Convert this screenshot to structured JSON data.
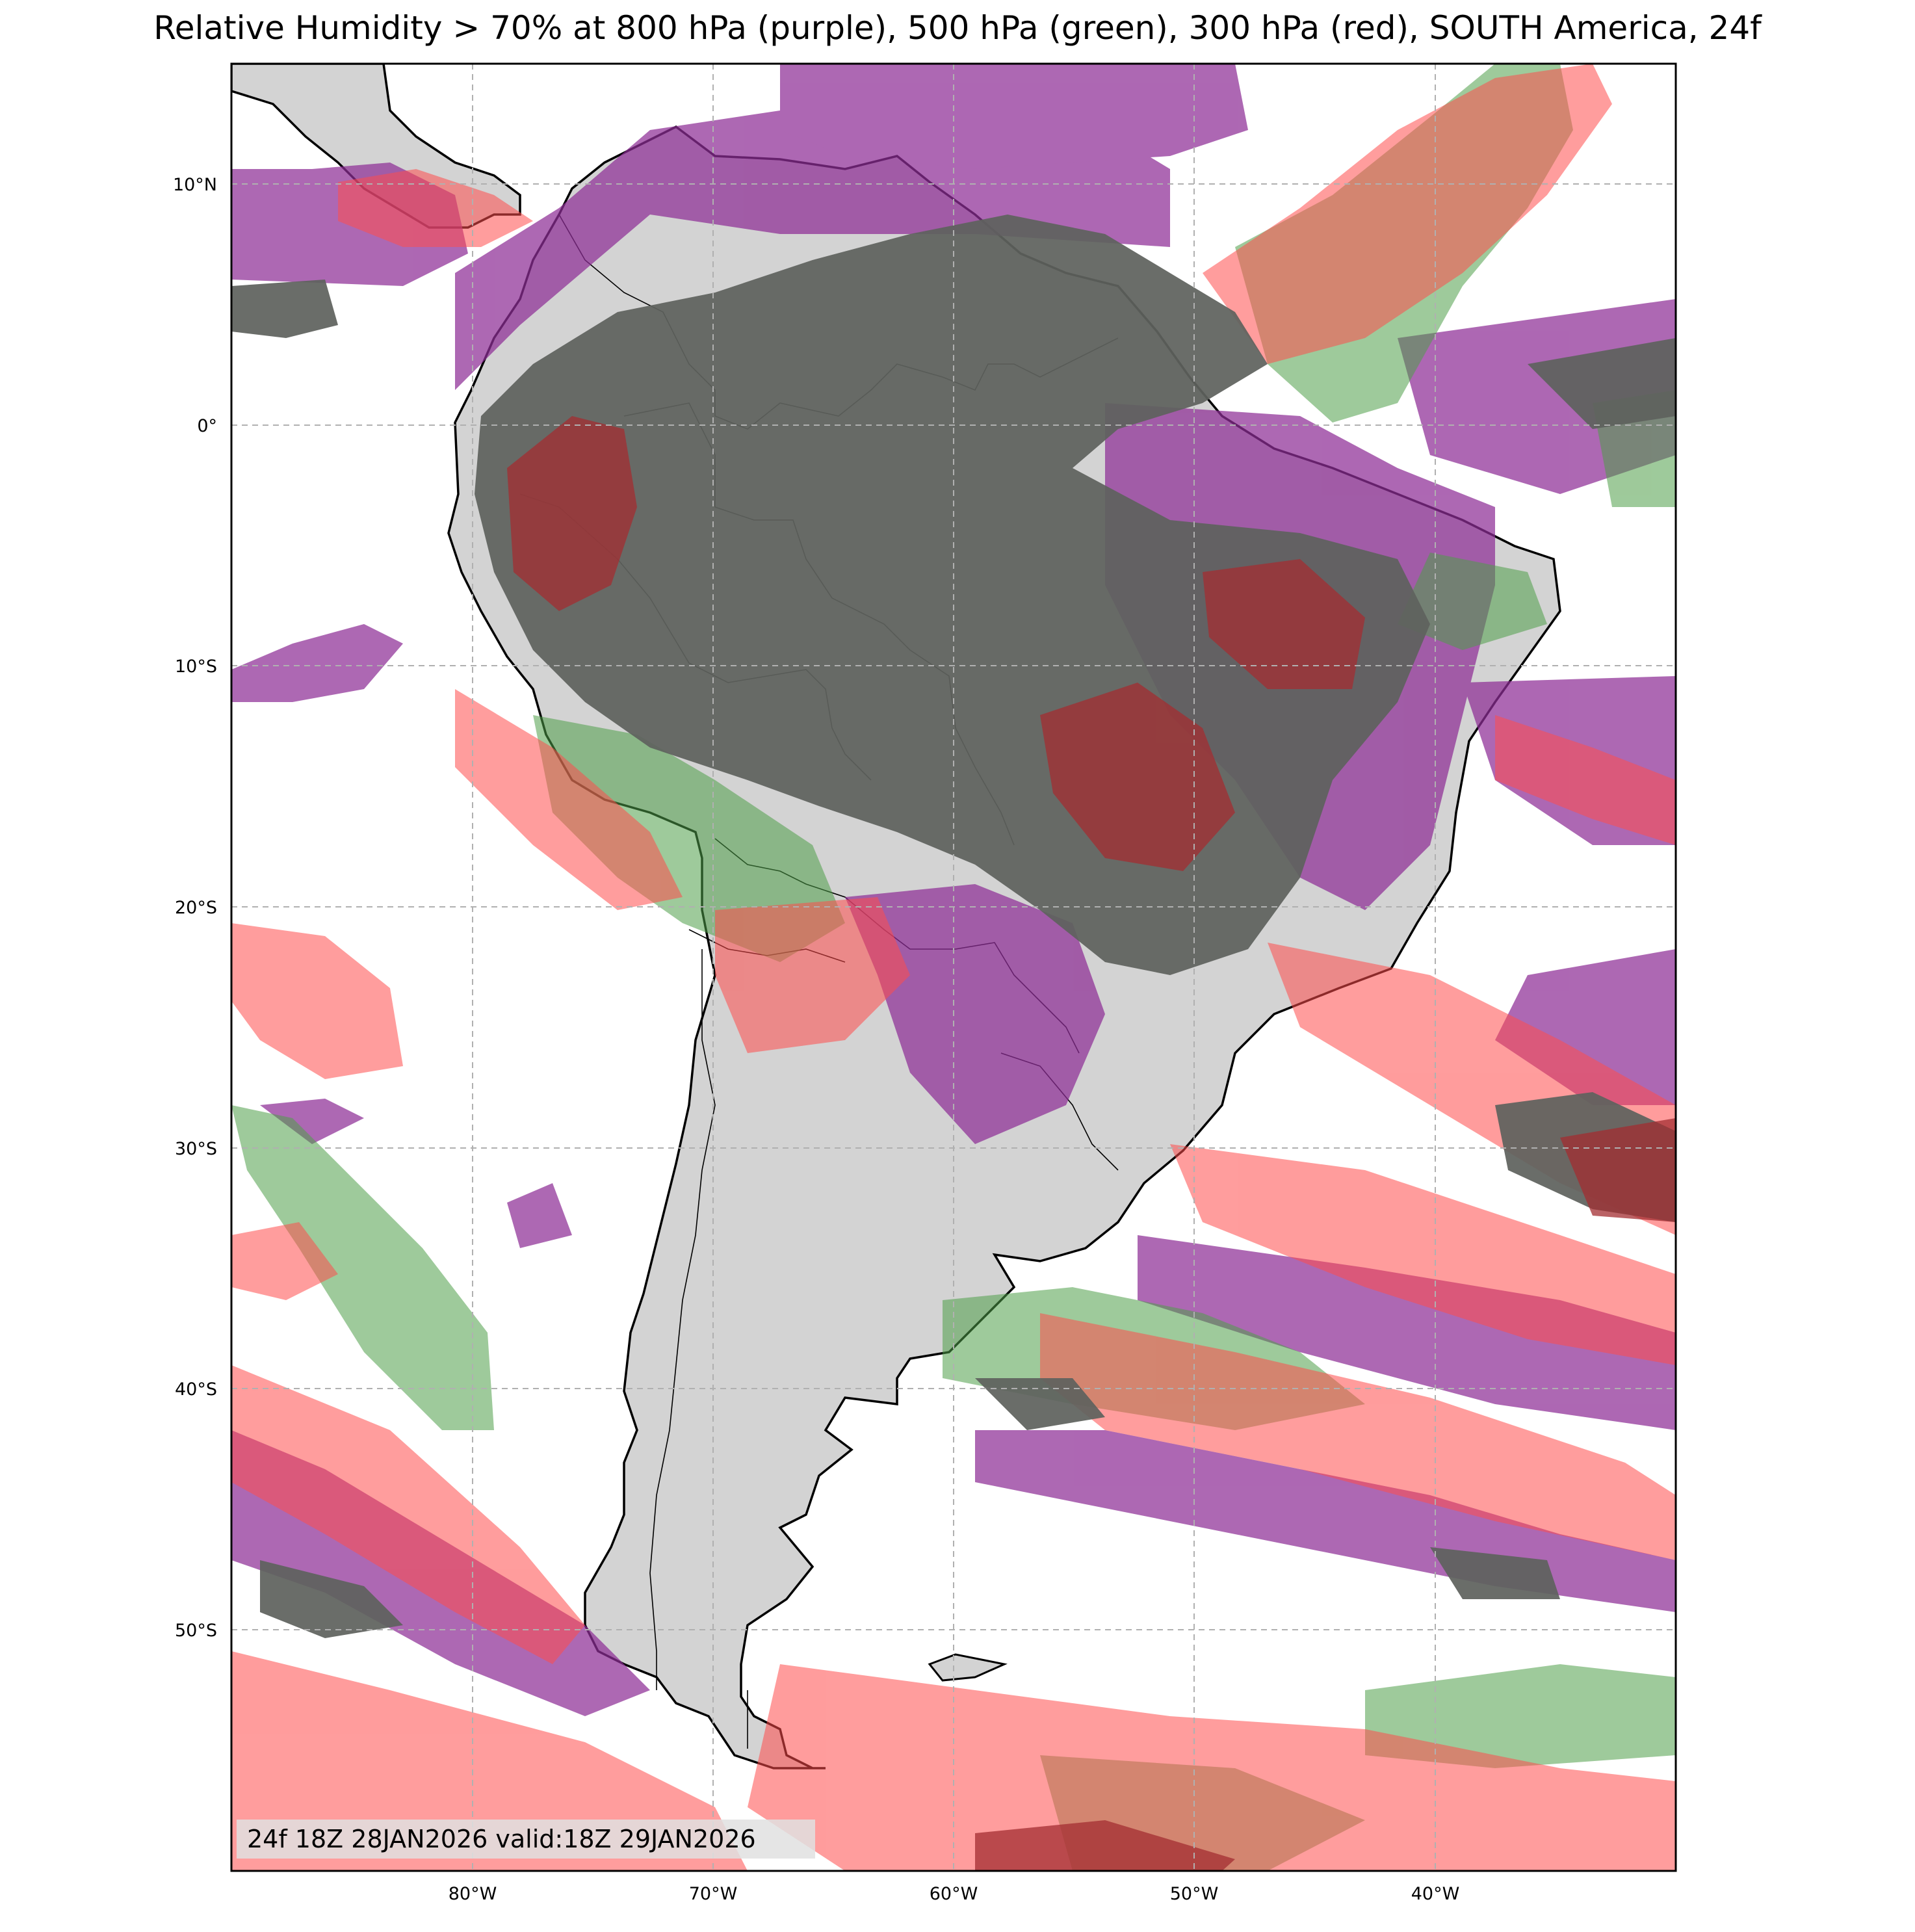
{
  "title": "Relative Humidity > 70% at 800 hPa (purple), 500 hPa (green), 300 hPa (red), SOUTH America, 24f",
  "valid_label": "24f 18Z 28JAN2026 valid:18Z 29JAN2026",
  "map": {
    "region": "SOUTH America",
    "lon_range": [
      -90,
      -30
    ],
    "lat_range": [
      -60,
      15
    ],
    "lon_ticks": [
      {
        "value": -80,
        "label": "80°W"
      },
      {
        "value": -70,
        "label": "70°W"
      },
      {
        "value": -60,
        "label": "60°W"
      },
      {
        "value": -50,
        "label": "50°W"
      },
      {
        "value": -40,
        "label": "40°W"
      }
    ],
    "lat_ticks": [
      {
        "value": 10,
        "label": "10°N"
      },
      {
        "value": 0,
        "label": "0°"
      },
      {
        "value": -10,
        "label": "10°S"
      },
      {
        "value": -20,
        "label": "20°S"
      },
      {
        "value": -30,
        "label": "30°S"
      },
      {
        "value": -40,
        "label": "40°S"
      },
      {
        "value": -50,
        "label": "50°S"
      }
    ],
    "grid": true,
    "land_color": "#d3d3d3",
    "ocean_color": "#ffffff"
  },
  "layers": [
    {
      "level": "800 hPa",
      "color": "#8e2e96"
    },
    {
      "level": "500 hPa",
      "color": "#4f9e48"
    },
    {
      "level": "300 hPa",
      "color": "#ff4c4c"
    }
  ],
  "overlap_color": "#5f625e"
}
